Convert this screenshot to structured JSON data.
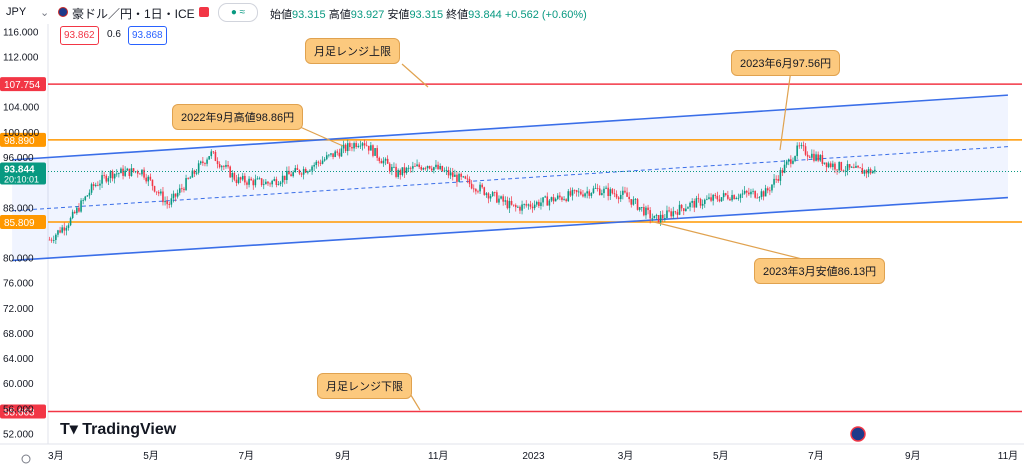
{
  "header": {
    "currency": "JPY",
    "title": "豪ドル／円・1日・ICE",
    "pill": "● ≈",
    "o_label": "始値",
    "o": "93.315",
    "h_label": "高値",
    "h": "93.927",
    "l_label": "安値",
    "l": "93.315",
    "c_label": "終値",
    "c": "93.844",
    "change": "+0.562 (+0.60%)",
    "sell": "93.862",
    "spread": "0.6",
    "buy": "93.868"
  },
  "price_marker": {
    "price": "93.844",
    "countdown": "20:10:01"
  },
  "annotations": [
    {
      "text": "月足レンジ上限"
    },
    {
      "text": "2022年9月高値98.86円"
    },
    {
      "text": "2023年6月97.56円"
    },
    {
      "text": "2023年3月安値86.13円"
    },
    {
      "text": "月足レンジ下限"
    }
  ],
  "branding": {
    "logo": "TradingView"
  },
  "colors": {
    "up": "#089981",
    "down": "#f23645",
    "channel": "#3a6ee8",
    "level": "#ff9800",
    "range": "#f23645"
  },
  "chart_data": {
    "type": "candlestick",
    "ylim": [
      50,
      118
    ],
    "y_ticks": [
      "116.000",
      "112.000",
      "104.000",
      "100.000",
      "96.000",
      "88.000",
      "80.000",
      "76.000",
      "72.000",
      "68.000",
      "64.000",
      "60.000",
      "56.000",
      "52.000"
    ],
    "x_ticks": [
      "3月",
      "5月",
      "7月",
      "9月",
      "11月",
      "2023",
      "3月",
      "5月",
      "7月",
      "9月",
      "11月"
    ],
    "horizontal_levels": [
      {
        "label": "107.754",
        "value": 107.754,
        "color": "#f23645"
      },
      {
        "label": "98.890",
        "value": 98.89,
        "color": "#ff9800"
      },
      {
        "label": "85.809",
        "value": 85.809,
        "color": "#ff9800"
      },
      {
        "label": "55.663",
        "value": 55.663,
        "color": "#f23645"
      }
    ],
    "channel": {
      "upper": {
        "start": [
          "2022-02",
          95.7
        ],
        "end": [
          "2023-11",
          106.0
        ]
      },
      "lower": {
        "start": [
          "2022-02",
          79.7
        ],
        "end": [
          "2023-11",
          89.7
        ]
      },
      "mid": {
        "start": [
          "2022-02",
          87.6
        ],
        "end": [
          "2023-11",
          97.8
        ]
      }
    },
    "close_path": [
      [
        "2022-02-25",
        83.0
      ],
      [
        "2022-03-10",
        86.0
      ],
      [
        "2022-03-25",
        91.5
      ],
      [
        "2022-04-05",
        93.5
      ],
      [
        "2022-04-25",
        94.0
      ],
      [
        "2022-05-12",
        88.5
      ],
      [
        "2022-06-08",
        96.8
      ],
      [
        "2022-06-25",
        92.5
      ],
      [
        "2022-07-15",
        92.0
      ],
      [
        "2022-08-10",
        94.5
      ],
      [
        "2022-09-13",
        98.86
      ],
      [
        "2022-10-05",
        93.5
      ],
      [
        "2022-10-25",
        95.0
      ],
      [
        "2022-11-25",
        91.5
      ],
      [
        "2022-12-20",
        88.0
      ],
      [
        "2023-01-15",
        89.5
      ],
      [
        "2023-02-10",
        91.0
      ],
      [
        "2023-03-01",
        90.0
      ],
      [
        "2023-03-20",
        86.13
      ],
      [
        "2023-04-10",
        88.5
      ],
      [
        "2023-05-05",
        90.0
      ],
      [
        "2023-05-30",
        90.5
      ],
      [
        "2023-06-20",
        97.56
      ],
      [
        "2023-07-10",
        95.0
      ],
      [
        "2023-07-25",
        94.0
      ],
      [
        "2023-08-08",
        93.844
      ]
    ]
  }
}
